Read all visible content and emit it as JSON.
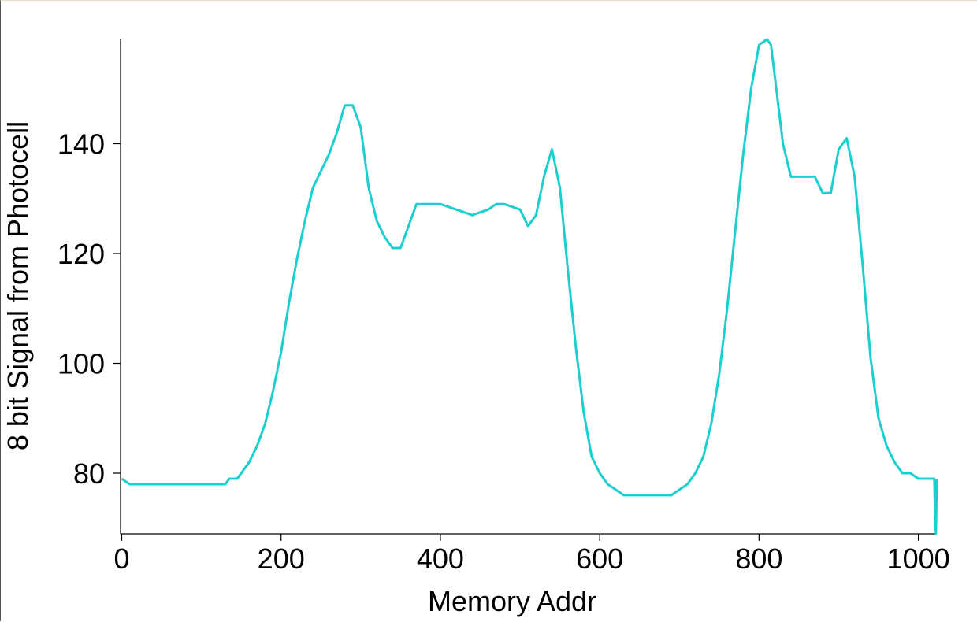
{
  "chart_data": {
    "type": "line",
    "title": "",
    "xlabel": "Memory Addr",
    "ylabel": "8 bit Signal from Photocell",
    "xlim": [
      0,
      1023
    ],
    "ylim": [
      69,
      159
    ],
    "xticks": [
      0,
      200,
      400,
      600,
      800,
      1000
    ],
    "yticks": [
      80,
      100,
      120,
      140
    ],
    "grid": false,
    "legend": "none",
    "series": [
      {
        "color": "#1ccfcf",
        "x": [
          0,
          10,
          30,
          40,
          130,
          135,
          145,
          150,
          160,
          170,
          180,
          190,
          200,
          210,
          220,
          230,
          240,
          250,
          260,
          270,
          280,
          290,
          300,
          310,
          320,
          330,
          340,
          350,
          360,
          370,
          380,
          400,
          420,
          440,
          460,
          470,
          480,
          500,
          510,
          520,
          530,
          540,
          550,
          560,
          570,
          580,
          590,
          600,
          610,
          620,
          630,
          640,
          650,
          660,
          670,
          690,
          700,
          710,
          720,
          730,
          740,
          750,
          760,
          770,
          780,
          790,
          800,
          810,
          815,
          820,
          830,
          840,
          850,
          860,
          870,
          880,
          890,
          900,
          910,
          920,
          930,
          940,
          950,
          960,
          970,
          980,
          990,
          1000,
          1010,
          1015,
          1020,
          1021,
          1022,
          1023
        ],
        "y": [
          79,
          78,
          78,
          78,
          78,
          79,
          79,
          80,
          82,
          85,
          89,
          95,
          102,
          111,
          119,
          126,
          132,
          135,
          138,
          142,
          147,
          147,
          143,
          132,
          126,
          123,
          121,
          121,
          125,
          129,
          129,
          129,
          128,
          127,
          128,
          129,
          129,
          128,
          125,
          127,
          134,
          139,
          132,
          117,
          103,
          91,
          83,
          80,
          78,
          77,
          76,
          76,
          76,
          76,
          76,
          76,
          77,
          78,
          80,
          83,
          89,
          98,
          110,
          124,
          138,
          150,
          158,
          159,
          158,
          152,
          140,
          134,
          134,
          134,
          134,
          131,
          131,
          139,
          141,
          134,
          118,
          101,
          90,
          85,
          82,
          80,
          80,
          79,
          79,
          79,
          79,
          72,
          69,
          79
        ]
      }
    ]
  }
}
